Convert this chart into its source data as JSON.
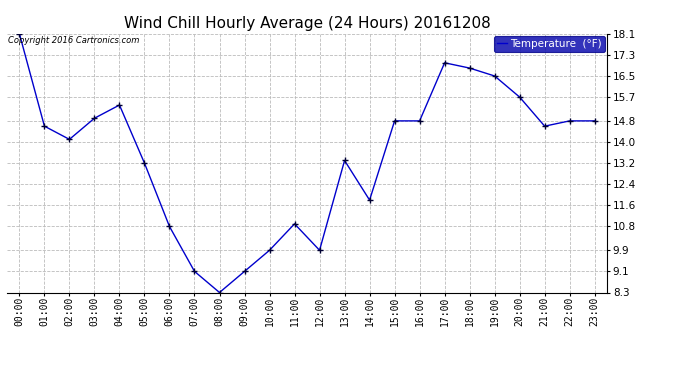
{
  "title": "Wind Chill Hourly Average (24 Hours) 20161208",
  "copyright_text": "Copyright 2016 Cartronics.com",
  "legend_label": "Temperature  (°F)",
  "x_labels": [
    "00:00",
    "01:00",
    "02:00",
    "03:00",
    "04:00",
    "05:00",
    "06:00",
    "07:00",
    "08:00",
    "09:00",
    "10:00",
    "11:00",
    "12:00",
    "13:00",
    "14:00",
    "15:00",
    "16:00",
    "17:00",
    "18:00",
    "19:00",
    "20:00",
    "21:00",
    "22:00",
    "23:00"
  ],
  "y_values": [
    18.1,
    14.6,
    14.1,
    14.9,
    15.4,
    13.2,
    10.8,
    9.1,
    8.3,
    9.1,
    9.9,
    10.9,
    9.9,
    13.3,
    11.8,
    14.8,
    14.8,
    17.0,
    16.8,
    16.5,
    15.7,
    14.6,
    14.8,
    14.8
  ],
  "ylim_min": 8.3,
  "ylim_max": 18.1,
  "yticks": [
    8.3,
    9.1,
    9.9,
    10.8,
    11.6,
    12.4,
    13.2,
    14.0,
    14.8,
    15.7,
    16.5,
    17.3,
    18.1
  ],
  "line_color": "#0000cc",
  "marker": "+",
  "background_color": "#ffffff",
  "plot_bg_color": "#ffffff",
  "grid_color": "#bbbbbb",
  "title_fontsize": 11,
  "legend_bg_color": "#0000aa",
  "legend_text_color": "#ffffff"
}
